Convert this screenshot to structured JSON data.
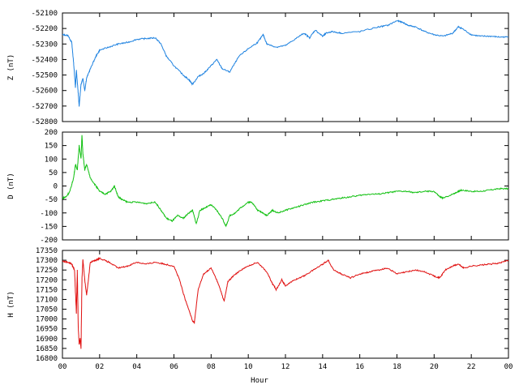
{
  "chart_data": [
    {
      "type": "line",
      "ylabel": "Z (nT)",
      "ylim": [
        -52800,
        -52100
      ],
      "yticks": [
        "-52100",
        "-52200",
        "-52300",
        "-52400",
        "-52500",
        "-52600",
        "-52700",
        "-52800"
      ],
      "xlim": [
        0,
        24
      ],
      "grid": false,
      "color": "#1e82e0",
      "series": [
        {
          "x": [
            0,
            0.3,
            0.5,
            0.6,
            0.7,
            0.75,
            0.85,
            0.9,
            1.0,
            1.1,
            1.2,
            1.3,
            1.5,
            1.8,
            2.0,
            2.5,
            3.0,
            3.5,
            4.0,
            4.5,
            5.0,
            5.3,
            5.6,
            6.0,
            6.5,
            6.8,
            7.0,
            7.3,
            7.6,
            8.0,
            8.3,
            8.6,
            9.0,
            9.5,
            10.0,
            10.5,
            10.8,
            11.0,
            11.5,
            12.0,
            12.5,
            13.0,
            13.3,
            13.6,
            14.0,
            14.2,
            14.5,
            15.0,
            16.0,
            17.0,
            17.5,
            18.0,
            18.3,
            18.6,
            19.0,
            19.5,
            20.0,
            20.5,
            21.0,
            21.3,
            21.5,
            22.0,
            22.5,
            23.0,
            23.5,
            24.0
          ],
          "values": [
            -52240,
            -52245,
            -52290,
            -52420,
            -52580,
            -52470,
            -52620,
            -52700,
            -52560,
            -52520,
            -52600,
            -52520,
            -52460,
            -52380,
            -52340,
            -52320,
            -52300,
            -52290,
            -52270,
            -52265,
            -52260,
            -52300,
            -52380,
            -52440,
            -52500,
            -52530,
            -52560,
            -52510,
            -52490,
            -52440,
            -52400,
            -52460,
            -52480,
            -52380,
            -52330,
            -52290,
            -52240,
            -52300,
            -52320,
            -52310,
            -52270,
            -52230,
            -52260,
            -52210,
            -52250,
            -52230,
            -52220,
            -52230,
            -52220,
            -52190,
            -52180,
            -52150,
            -52160,
            -52180,
            -52190,
            -52220,
            -52240,
            -52250,
            -52230,
            -52190,
            -52200,
            -52240,
            -52250,
            -52250,
            -52255,
            -52255
          ]
        }
      ]
    },
    {
      "type": "line",
      "ylabel": "D (nT)",
      "ylim": [
        -200,
        200
      ],
      "yticks": [
        "200",
        "150",
        "100",
        "50",
        "0",
        "-50",
        "-100",
        "-150",
        "-200"
      ],
      "xlim": [
        0,
        24
      ],
      "grid": false,
      "color": "#10c010",
      "series": [
        {
          "x": [
            0,
            0.2,
            0.4,
            0.6,
            0.7,
            0.8,
            0.9,
            1.0,
            1.05,
            1.1,
            1.2,
            1.3,
            1.5,
            1.8,
            2.0,
            2.3,
            2.6,
            2.8,
            3.0,
            3.2,
            3.5,
            4.0,
            4.5,
            5.0,
            5.3,
            5.6,
            5.9,
            6.2,
            6.5,
            6.8,
            7.0,
            7.2,
            7.4,
            7.7,
            8.0,
            8.3,
            8.6,
            8.8,
            9.0,
            9.3,
            9.6,
            10.0,
            10.2,
            10.5,
            10.8,
            11.0,
            11.3,
            11.6,
            12.0,
            12.5,
            13.0,
            13.5,
            14.0,
            14.5,
            15.0,
            15.5,
            16.0,
            16.5,
            17.0,
            17.5,
            18.0,
            18.5,
            19.0,
            19.5,
            20.0,
            20.3,
            20.5,
            21.0,
            21.3,
            21.5,
            22.0,
            22.5,
            23.0,
            23.5,
            24.0
          ],
          "values": [
            -45,
            -40,
            -20,
            30,
            80,
            60,
            150,
            100,
            190,
            120,
            60,
            80,
            30,
            0,
            -20,
            -30,
            -20,
            0,
            -40,
            -50,
            -60,
            -60,
            -65,
            -60,
            -90,
            -120,
            -130,
            -110,
            -120,
            -100,
            -90,
            -140,
            -90,
            -80,
            -70,
            -90,
            -120,
            -150,
            -110,
            -100,
            -80,
            -60,
            -60,
            -90,
            -100,
            -110,
            -90,
            -100,
            -90,
            -80,
            -70,
            -60,
            -55,
            -50,
            -45,
            -40,
            -35,
            -30,
            -30,
            -25,
            -20,
            -20,
            -25,
            -20,
            -20,
            -40,
            -45,
            -30,
            -20,
            -15,
            -20,
            -20,
            -15,
            -10,
            -10
          ]
        }
      ]
    },
    {
      "type": "line",
      "ylabel": "H (nT)",
      "xlabel": "Hour",
      "ylim": [
        16800,
        17350
      ],
      "yticks": [
        "17350",
        "17300",
        "17250",
        "17200",
        "17150",
        "17100",
        "17050",
        "17000",
        "16950",
        "16900",
        "16850",
        "16800"
      ],
      "xlim": [
        0,
        24
      ],
      "xticks": [
        "00",
        "02",
        "04",
        "06",
        "08",
        "10",
        "12",
        "14",
        "16",
        "18",
        "20",
        "22",
        "00"
      ],
      "grid": false,
      "color": "#e01010",
      "series": [
        {
          "x": [
            0,
            0.3,
            0.5,
            0.65,
            0.75,
            0.8,
            0.85,
            0.9,
            0.95,
            1.0,
            1.05,
            1.1,
            1.2,
            1.3,
            1.5,
            1.8,
            2.0,
            2.5,
            3.0,
            3.5,
            4.0,
            4.5,
            5.0,
            5.5,
            6.0,
            6.3,
            6.6,
            6.8,
            7.0,
            7.1,
            7.3,
            7.6,
            8.0,
            8.3,
            8.5,
            8.7,
            8.9,
            9.2,
            9.6,
            10.0,
            10.5,
            11.0,
            11.3,
            11.5,
            11.8,
            12.0,
            12.5,
            13.0,
            13.5,
            14.0,
            14.3,
            14.6,
            15.0,
            15.5,
            16.0,
            16.5,
            17.0,
            17.5,
            18.0,
            18.5,
            19.0,
            19.5,
            20.0,
            20.3,
            20.6,
            21.0,
            21.3,
            21.6,
            22.0,
            22.5,
            23.0,
            23.5,
            24.0
          ],
          "values": [
            17295,
            17290,
            17280,
            17250,
            17030,
            17250,
            16960,
            16870,
            16900,
            16850,
            17200,
            17305,
            17200,
            17120,
            17290,
            17300,
            17310,
            17290,
            17260,
            17270,
            17290,
            17280,
            17290,
            17280,
            17270,
            17200,
            17100,
            17050,
            16990,
            16980,
            17150,
            17230,
            17260,
            17200,
            17150,
            17090,
            17190,
            17220,
            17250,
            17270,
            17290,
            17240,
            17180,
            17150,
            17200,
            17170,
            17200,
            17220,
            17250,
            17280,
            17300,
            17250,
            17230,
            17210,
            17230,
            17240,
            17250,
            17260,
            17230,
            17240,
            17250,
            17240,
            17220,
            17210,
            17250,
            17270,
            17280,
            17260,
            17270,
            17275,
            17280,
            17285,
            17300
          ]
        }
      ]
    }
  ]
}
